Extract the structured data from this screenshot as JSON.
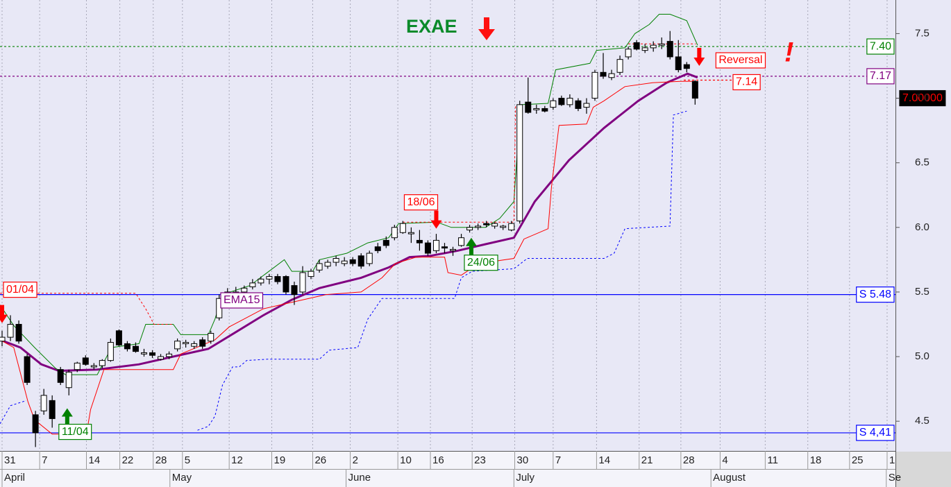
{
  "chart_data": {
    "type": "candlestick",
    "title": "EXAE",
    "ylim": [
      4.27,
      7.76
    ],
    "yticks": [
      4.5,
      {
        "value": 5,
        "label": "5.0"
      },
      5.5,
      {
        "value": 6,
        "label": "6.0"
      },
      6.5,
      {
        "value": 7,
        "label": "7.0"
      },
      7.5
    ],
    "xlim": [
      -0.25,
      107
    ],
    "xticks": [
      {
        "value": 0,
        "label": "31"
      },
      {
        "value": 4.5,
        "label": "7"
      },
      {
        "value": 10.1,
        "label": "14"
      },
      {
        "value": 14.1,
        "label": "22"
      },
      {
        "value": 18.1,
        "label": "28"
      },
      {
        "value": 21.6,
        "label": "5"
      },
      {
        "value": 27.2,
        "label": "12"
      },
      {
        "value": 32.3,
        "label": "19"
      },
      {
        "value": 37.2,
        "label": "26"
      },
      {
        "value": 41.7,
        "label": "2"
      },
      {
        "value": 47.4,
        "label": "10"
      },
      {
        "value": 51.3,
        "label": "16"
      },
      {
        "value": 56.3,
        "label": "23"
      },
      {
        "value": 61.4,
        "label": "30"
      },
      {
        "value": 66.0,
        "label": "7"
      },
      {
        "value": 71.2,
        "label": "14"
      },
      {
        "value": 76.3,
        "label": "21"
      },
      {
        "value": 81.3,
        "label": "28"
      },
      {
        "value": 86.0,
        "label": "4"
      },
      {
        "value": 91.4,
        "label": "11"
      },
      {
        "value": 96.5,
        "label": "18"
      },
      {
        "value": 101.5,
        "label": "25"
      },
      {
        "value": 106.0,
        "label": "1"
      }
    ],
    "months": [
      {
        "value": 0,
        "label": "April"
      },
      {
        "value": 20.1,
        "label": "May"
      },
      {
        "value": 41.2,
        "label": "June"
      },
      {
        "value": 61.3,
        "label": "July"
      },
      {
        "value": 84.9,
        "label": "August"
      },
      {
        "value": 105.9,
        "label": "Se"
      }
    ],
    "up_color": "#ffffff",
    "down_color": "#000000",
    "open": [
      5.12,
      5.15,
      5.25,
      5.0,
      4.55,
      4.58,
      4.66,
      4.9,
      4.76,
      4.9,
      4.99,
      4.92,
      4.93,
      4.97,
      5.2,
      5.1,
      5.08,
      5.02,
      5.03,
      4.98,
      5.0,
      5.06,
      5.1,
      5.08,
      5.13,
      5.12,
      5.3,
      5.48,
      5.49,
      5.5,
      5.54,
      5.57,
      5.6,
      5.62,
      5.62,
      5.55,
      5.5,
      5.62,
      5.67,
      5.7,
      5.73,
      5.72,
      5.75,
      5.78,
      5.72,
      5.85,
      5.9,
      5.92,
      5.96,
      5.95,
      5.9,
      5.88,
      5.82,
      5.85,
      5.82,
      5.86,
      5.98,
      6.0,
      6.03,
      6.01,
      6.0,
      5.98,
      6.05,
      6.97,
      6.91,
      6.92,
      6.93,
      7.0,
      6.95,
      6.98,
      6.93,
      7.0,
      7.2,
      7.16,
      7.2,
      7.32,
      7.43,
      7.37,
      7.39,
      7.41,
      7.44,
      7.32,
      7.26,
      7.13
    ],
    "high": [
      5.2,
      5.32,
      5.28,
      5.02,
      4.58,
      4.75,
      4.7,
      4.92,
      4.9,
      4.96,
      5.01,
      4.95,
      4.98,
      5.14,
      5.21,
      5.12,
      5.11,
      5.06,
      5.05,
      5.02,
      5.04,
      5.14,
      5.13,
      5.12,
      5.15,
      5.2,
      5.48,
      5.53,
      5.54,
      5.55,
      5.6,
      5.62,
      5.64,
      5.64,
      5.63,
      5.58,
      5.7,
      5.68,
      5.75,
      5.75,
      5.78,
      5.77,
      5.77,
      5.8,
      5.82,
      5.88,
      5.93,
      6.02,
      6.05,
      6.0,
      5.98,
      5.9,
      5.95,
      5.88,
      5.85,
      5.95,
      6.02,
      6.03,
      6.05,
      6.04,
      6.02,
      6.05,
      6.98,
      7.16,
      6.95,
      6.94,
      7.0,
      7.02,
      7.03,
      7.0,
      7.0,
      7.22,
      7.35,
      7.22,
      7.33,
      7.4,
      7.45,
      7.42,
      7.44,
      7.47,
      7.52,
      7.45,
      7.28,
      7.14
    ],
    "low": [
      5.08,
      5.12,
      5.1,
      4.78,
      4.3,
      4.55,
      4.45,
      4.78,
      4.7,
      4.88,
      4.93,
      4.9,
      4.91,
      4.96,
      5.08,
      5.04,
      5.03,
      5.0,
      4.99,
      4.97,
      4.98,
      5.04,
      5.07,
      5.06,
      5.06,
      5.1,
      5.28,
      5.45,
      5.46,
      5.48,
      5.52,
      5.55,
      5.56,
      5.56,
      5.48,
      5.4,
      5.48,
      5.6,
      5.65,
      5.68,
      5.7,
      5.7,
      5.7,
      5.68,
      5.7,
      5.8,
      5.84,
      5.9,
      5.95,
      5.88,
      5.82,
      5.78,
      5.8,
      5.8,
      5.78,
      5.85,
      5.96,
      5.98,
      6.0,
      5.99,
      5.98,
      5.97,
      6.03,
      6.88,
      6.88,
      6.89,
      6.91,
      6.94,
      6.93,
      6.9,
      6.88,
      6.98,
      7.15,
      7.14,
      7.18,
      7.3,
      7.37,
      7.35,
      7.36,
      7.38,
      7.3,
      7.2,
      7.2,
      6.95
    ],
    "close": [
      5.15,
      5.25,
      5.12,
      4.8,
      4.41,
      4.7,
      4.52,
      4.8,
      4.88,
      4.95,
      4.94,
      4.93,
      4.97,
      5.11,
      5.09,
      5.06,
      5.04,
      5.03,
      5.01,
      5.0,
      5.02,
      5.12,
      5.11,
      5.1,
      5.08,
      5.18,
      5.45,
      5.5,
      5.5,
      5.53,
      5.57,
      5.6,
      5.62,
      5.58,
      5.5,
      5.48,
      5.65,
      5.66,
      5.72,
      5.73,
      5.76,
      5.74,
      5.72,
      5.7,
      5.8,
      5.82,
      5.86,
      6.0,
      6.03,
      5.96,
      5.88,
      5.8,
      5.9,
      5.84,
      5.83,
      5.92,
      6.0,
      6.01,
      6.02,
      6.03,
      6.01,
      6.03,
      6.95,
      6.89,
      6.92,
      6.9,
      6.98,
      6.95,
      7.0,
      6.92,
      6.96,
      7.2,
      7.17,
      7.19,
      7.3,
      7.38,
      7.38,
      7.39,
      7.41,
      7.42,
      7.32,
      7.22,
      7.23,
      7.0
    ],
    "lines": [
      {
        "name": "EMA15",
        "color": "#800080",
        "width": 3,
        "dash": "none",
        "x": [
          -0.25,
          2.2,
          4.7,
          6.8,
          11.4,
          16.4,
          20.5,
          24.7,
          28.0,
          31.3,
          34.7,
          38.0,
          43.0,
          46.3,
          48.8,
          51.3,
          54.6,
          57.9,
          61.3,
          63.8,
          67.9,
          72.1,
          76.2,
          79.6,
          82.1,
          83.3
        ],
        "values": [
          5.13,
          5.07,
          4.94,
          4.89,
          4.9,
          4.94,
          5.0,
          5.06,
          5.19,
          5.32,
          5.44,
          5.53,
          5.61,
          5.69,
          5.77,
          5.78,
          5.82,
          5.87,
          5.92,
          6.2,
          6.52,
          6.77,
          6.98,
          7.12,
          7.19,
          7.16
        ]
      },
      {
        "color": "#008000",
        "width": 1,
        "dash": "none",
        "x": [
          -0.25,
          1.4,
          3.9,
          6.4,
          7.6,
          11.4,
          13.1,
          16.4,
          17.2,
          20.5,
          21.4,
          24.7,
          25.5,
          26.4,
          29.7,
          33.8,
          34.7,
          37.2,
          38.0,
          41.3,
          43.8,
          46.3,
          47.5,
          52.1,
          53.8,
          57.9,
          59.6,
          61.3,
          62.1,
          65.4,
          66.3,
          70.4,
          71.2,
          74.6,
          75.8,
          77.5,
          78.7,
          80.0,
          82.0,
          83.3
        ],
        "values": [
          5.4,
          5.24,
          5.07,
          4.91,
          4.86,
          4.86,
          5.07,
          5.1,
          5.25,
          5.25,
          5.17,
          5.17,
          5.29,
          5.48,
          5.55,
          5.75,
          5.66,
          5.66,
          5.75,
          5.8,
          5.88,
          5.92,
          6.03,
          6.04,
          6.0,
          6.0,
          6.07,
          6.2,
          6.95,
          6.96,
          7.22,
          7.27,
          7.37,
          7.39,
          7.5,
          7.57,
          7.65,
          7.65,
          7.6,
          7.41
        ]
      },
      {
        "color": "#ff0000",
        "width": 1,
        "dash": "none",
        "x": [
          -0.25,
          1.4,
          3.1,
          3.9,
          6.0,
          10.1,
          10.6,
          12.2,
          20.5,
          21.4,
          25.5,
          27.2,
          31.3,
          34.7,
          38.8,
          43.0,
          45.5,
          47.1,
          49.6,
          53.0,
          53.4,
          55.0,
          57.1,
          61.3,
          62.5,
          65.4,
          65.8,
          66.7,
          70.0,
          70.8,
          72.1,
          74.6,
          77.9,
          81.2,
          82.9
        ],
        "values": [
          5.13,
          5.07,
          4.65,
          4.51,
          4.4,
          4.4,
          4.59,
          4.9,
          4.9,
          5.02,
          5.13,
          5.23,
          5.37,
          5.42,
          5.48,
          5.5,
          5.61,
          5.72,
          5.77,
          5.77,
          5.65,
          5.63,
          5.72,
          5.76,
          5.91,
          5.99,
          6.31,
          6.79,
          6.8,
          6.93,
          6.98,
          7.09,
          7.12,
          7.13,
          7.13
        ]
      },
      {
        "color": "#0000ff",
        "width": 1,
        "dash": "3,3",
        "x": [
          -0.25,
          1.0,
          2.9,
          null,
          23.4,
          24.7,
          25.5,
          26.4,
          27.6,
          28.4,
          29.3,
          31.8,
          38.0,
          39.2,
          42.6,
          43.8,
          45.5,
          54.2,
          55.0,
          56.3,
          61.3,
          62.9,
          72.1,
          73.3,
          74.6,
          80.0,
          80.4,
          82.0
        ],
        "values": [
          4.48,
          4.62,
          4.66,
          null,
          4.43,
          4.46,
          4.54,
          4.78,
          4.92,
          4.92,
          4.97,
          4.98,
          4.98,
          5.05,
          5.07,
          5.29,
          5.45,
          5.45,
          5.61,
          5.66,
          5.68,
          5.76,
          5.76,
          5.8,
          5.99,
          6.01,
          6.87,
          6.9
        ]
      },
      {
        "color": "#ff0000",
        "width": 1,
        "dash": "3,3",
        "x": [
          -0.25,
          16.0,
          17.2,
          18.2,
          20.5,
          null,
          48.0,
          61.3,
          61.5,
          null,
          75.0,
          83.1
        ],
        "values": [
          5.49,
          5.49,
          5.37,
          5.25,
          5.25,
          null,
          6.04,
          6.04,
          6.95,
          null,
          7.42,
          7.42
        ]
      }
    ],
    "levels": [
      {
        "value": 5.48,
        "label": "S 5.48",
        "color": "#0000ff",
        "style": "solid",
        "extent": "full"
      },
      {
        "value": 4.41,
        "label": "S 4,41",
        "color": "#0000ff",
        "style": "solid",
        "extent": "full"
      },
      {
        "value": 7.4,
        "label": "7.40",
        "color": "#008000",
        "style": "dotted",
        "extent": "full"
      },
      {
        "value": 7.17,
        "label": "7.17",
        "color": "#800080",
        "style": "dotted",
        "extent": "full"
      },
      {
        "value": 7.14,
        "label": "7.14",
        "color": "#ff0000",
        "style": "dotted",
        "extent": "partial"
      }
    ],
    "last_price": {
      "value": 7,
      "label": "7.00000"
    },
    "signals": [
      {
        "label": "01/04",
        "x": 0.0,
        "value": 5.26,
        "direction": "down",
        "color": "#ff0000"
      },
      {
        "label": "11/04",
        "x": 7.8,
        "value": 4.6,
        "direction": "up",
        "color": "#008000"
      },
      {
        "label": "18/06",
        "x": 52.0,
        "value": 5.99,
        "direction": "down",
        "color": "#ff0000"
      },
      {
        "label": "24/06",
        "x": 56.2,
        "value": 5.92,
        "direction": "up",
        "color": "#008000"
      },
      {
        "label": "Reversal",
        "x": 83.5,
        "value": 7.25,
        "direction": "down",
        "color": "#ff0000"
      }
    ],
    "reversal_mark": "!"
  }
}
